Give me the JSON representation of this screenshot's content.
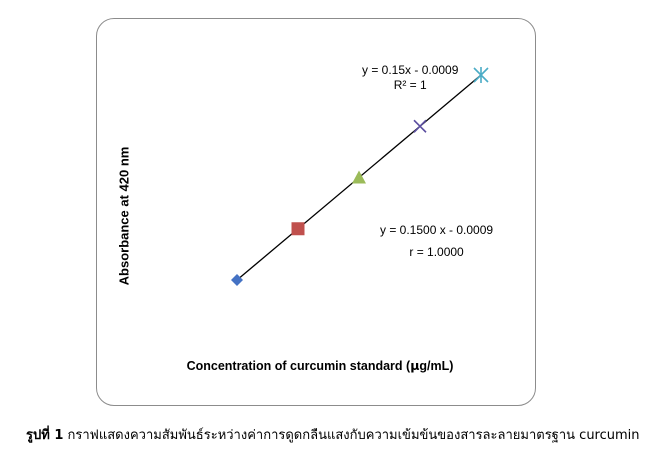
{
  "chart_data": {
    "type": "scatter",
    "xlabel_prefix": "Concentration of curcumin standard (",
    "xlabel_unit_mu": "µ",
    "xlabel_suffix": "g/mL)",
    "ylabel": "Absorbance at 420 nm",
    "annotations": {
      "trend_eq": "y = 0.15x - 0.0009",
      "trend_r2": "R² = 1",
      "fit_eq": "y = 0.1500 x - 0.0009",
      "fit_r": "r = 1.0000"
    },
    "series": [
      {
        "marker": "diamond",
        "color": "#4472c4",
        "x": 1,
        "y": 0.1491
      },
      {
        "marker": "square",
        "color": "#c0504d",
        "x": 2,
        "y": 0.2991
      },
      {
        "marker": "triangle",
        "color": "#9bbb59",
        "x": 3,
        "y": 0.4491
      },
      {
        "marker": "x",
        "color": "#5b4ea0",
        "x": 4,
        "y": 0.5991
      },
      {
        "marker": "star",
        "color": "#4bacc6",
        "x": 5,
        "y": 0.7491
      }
    ],
    "trendline": {
      "slope": 0.15,
      "intercept": -0.0009,
      "x_start": 1,
      "x_end": 5
    },
    "xlim": [
      1,
      5
    ],
    "ylim": [
      0.1491,
      0.7491
    ],
    "grid": false,
    "legend": "none"
  },
  "caption": {
    "label": "รูปที่ 1",
    "text": " กราฟแสดงความสัมพันธ์ระหว่างค่าการดูดกลืนแสงกับความเข้มข้นของสารละลายมาตรฐาน curcumin"
  }
}
